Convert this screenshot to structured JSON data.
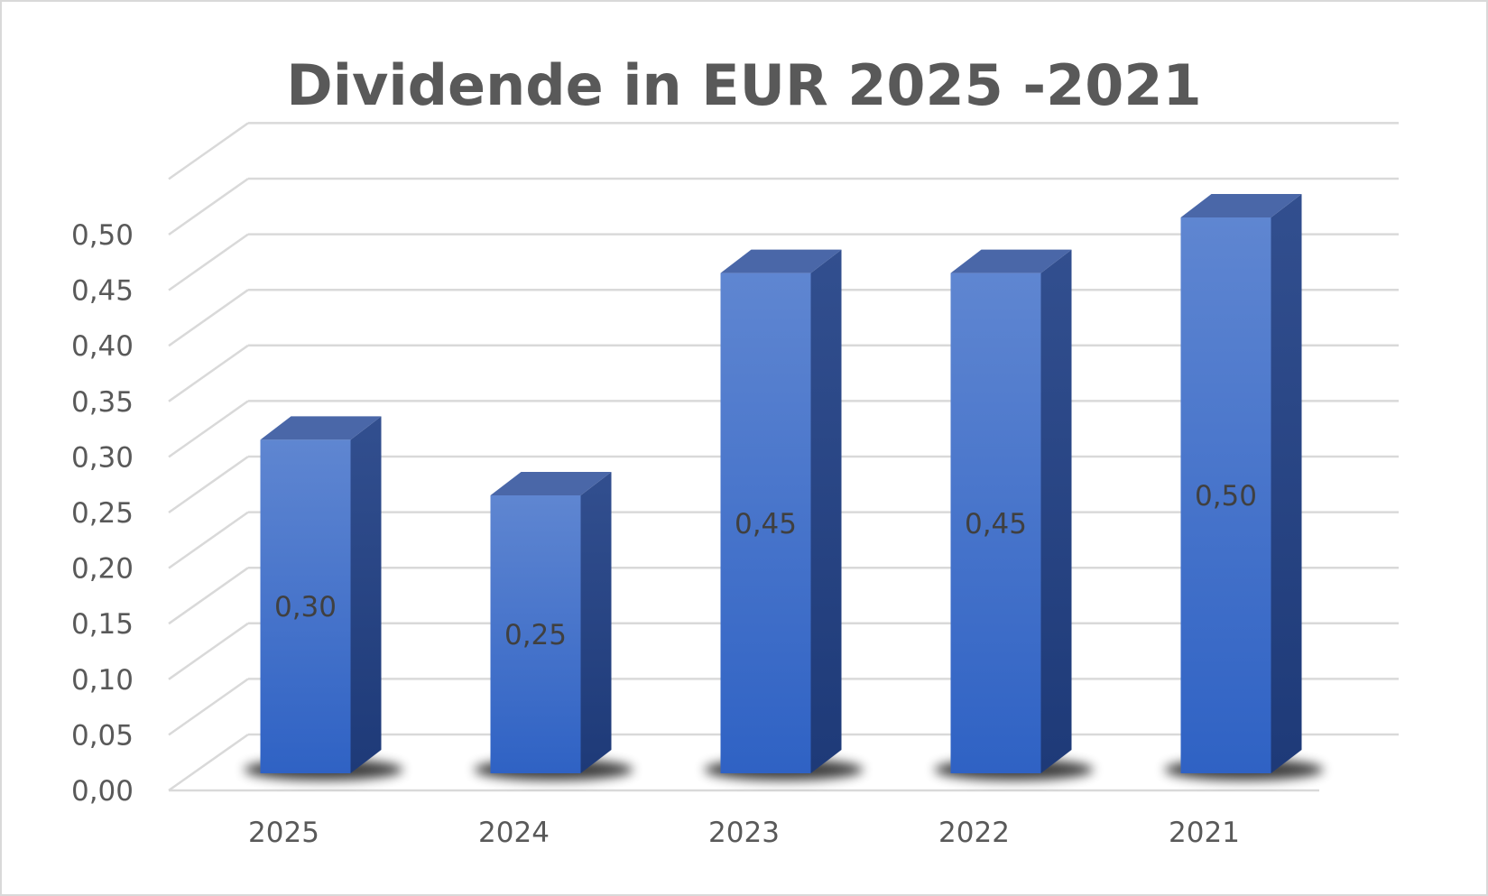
{
  "chart_data": {
    "type": "bar",
    "title": "Dividende in EUR 2025 -2021",
    "xlabel": "",
    "ylabel": "",
    "categories": [
      "2025",
      "2024",
      "2023",
      "2022",
      "2021"
    ],
    "values": [
      0.3,
      0.25,
      0.45,
      0.45,
      0.5
    ],
    "data_labels": [
      "0,30",
      "0,25",
      "0,45",
      "0,45",
      "0,50"
    ],
    "ylim": [
      0,
      0.55
    ],
    "yticks": [
      0.0,
      0.05,
      0.1,
      0.15,
      0.2,
      0.25,
      0.3,
      0.35,
      0.4,
      0.45,
      0.5
    ],
    "ytick_labels": [
      "0,00",
      "0,05",
      "0,10",
      "0,15",
      "0,20",
      "0,25",
      "0,30",
      "0,35",
      "0,40",
      "0,45",
      "0,50"
    ],
    "grid": true,
    "legend": "none",
    "style": "3d-column",
    "colors": {
      "bar_front_top": "#5f86d1",
      "bar_front_bottom": "#2f62c4",
      "bar_side": "#2a4785",
      "bar_top": "#4a67a8",
      "gridline": "#d9d9d9",
      "text": "#595959"
    }
  }
}
